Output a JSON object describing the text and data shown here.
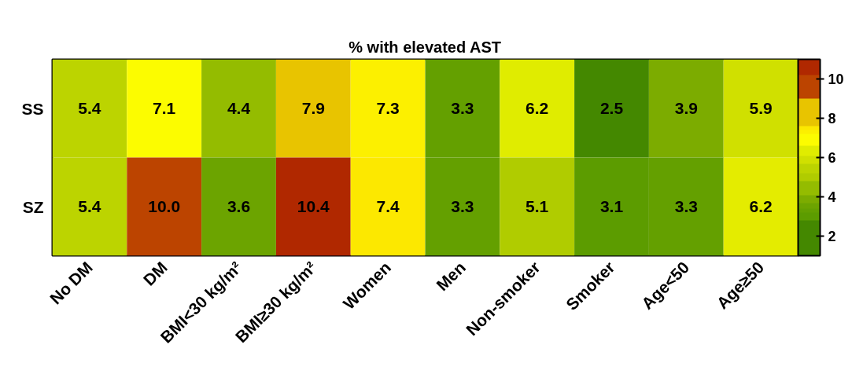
{
  "chart_data": {
    "type": "heatmap",
    "title": "% with elevated AST",
    "categories": [
      "No DM",
      "DM",
      "BMI<30 kg/m²",
      "BMI≥30 kg/m²",
      "Women",
      "Men",
      "Non-smoker",
      "Smoker",
      "Age<50",
      "Age≥50"
    ],
    "y_categories": [
      "SS",
      "SZ"
    ],
    "cells": [
      [
        5.4,
        7.1,
        4.4,
        7.9,
        7.3,
        3.3,
        6.2,
        2.5,
        3.9,
        5.9
      ],
      [
        5.4,
        10.0,
        3.6,
        10.4,
        7.4,
        3.3,
        5.1,
        3.1,
        3.3,
        6.2
      ]
    ],
    "cell_labels": [
      [
        "5.4",
        "7.1",
        "4.4",
        "7.9",
        "7.3",
        "3.3",
        "6.2",
        "2.5",
        "3.9",
        "5.9"
      ],
      [
        "5.4",
        "10.0",
        "3.6",
        "10.4",
        "7.4",
        "3.3",
        "5.1",
        "3.1",
        "3.3",
        "6.2"
      ]
    ],
    "data_labels": true,
    "colors": [
      [
        "#bcd400",
        "#fcfc00",
        "#94bc00",
        "#e8c400",
        "#fcf000",
        "#64a000",
        "#e0ec00",
        "#448800",
        "#7cac00",
        "#d0e000"
      ],
      [
        "#bcd400",
        "#bc4400",
        "#6ca400",
        "#b02800",
        "#fce800",
        "#64a000",
        "#b0cc00",
        "#5c9c00",
        "#64a000",
        "#e4ec00"
      ]
    ],
    "clim": [
      1,
      11
    ],
    "cticks": [
      2,
      4,
      6,
      8,
      10
    ]
  }
}
